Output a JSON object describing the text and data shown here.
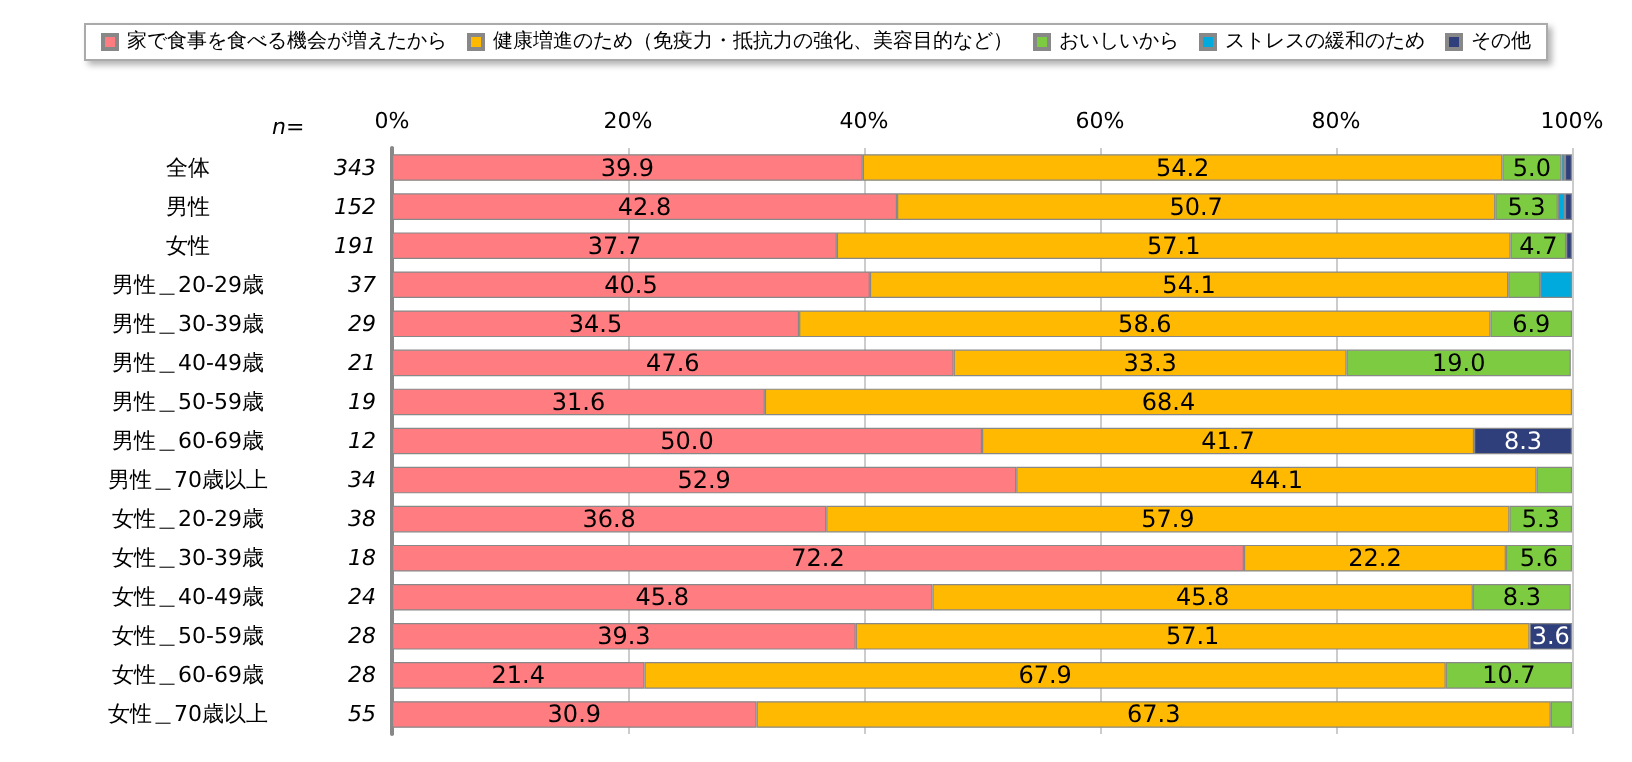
{
  "chart_data": {
    "type": "bar",
    "orientation": "horizontal",
    "stacked": true,
    "categories": [
      "全体",
      "男性",
      "女性",
      "男性＿20-29歳",
      "男性＿30-39歳",
      "男性＿40-49歳",
      "男性＿50-59歳",
      "男性＿60-69歳",
      "男性＿70歳以上",
      "女性＿20-29歳",
      "女性＿30-39歳",
      "女性＿40-49歳",
      "女性＿50-59歳",
      "女性＿60-69歳",
      "女性＿70歳以上"
    ],
    "series": [
      {
        "name": "家で食事を食べる機会が増えたから",
        "color": "#ff7c80",
        "values": [
          39.9,
          42.8,
          37.7,
          40.5,
          34.5,
          47.6,
          31.6,
          50.0,
          52.9,
          36.8,
          72.2,
          45.8,
          39.3,
          21.4,
          30.9
        ],
        "value_labels": [
          "39.9",
          "42.8",
          "37.7",
          "40.5",
          "34.5",
          "47.6",
          "31.6",
          "50.0",
          "52.9",
          "36.8",
          "72.2",
          "45.8",
          "39.3",
          "21.4",
          "30.9"
        ]
      },
      {
        "name": "健康増進のため（免疫力・抵抗力の強化、美容目的など）",
        "color": "#ffb900",
        "values": [
          54.2,
          50.7,
          57.1,
          54.1,
          58.6,
          33.3,
          68.4,
          41.7,
          44.1,
          57.9,
          22.2,
          45.8,
          57.1,
          67.9,
          67.3
        ],
        "value_labels": [
          "54.2",
          "50.7",
          "57.1",
          "54.1",
          "58.6",
          "33.3",
          "68.4",
          "41.7",
          "44.1",
          "57.9",
          "22.2",
          "45.8",
          "57.1",
          "67.9",
          "67.3"
        ]
      },
      {
        "name": "おいしいから",
        "color": "#7dcb41",
        "values": [
          5.0,
          5.3,
          4.7,
          2.7,
          6.9,
          19.0,
          null,
          null,
          3.0,
          5.3,
          5.6,
          8.3,
          null,
          10.7,
          1.8
        ],
        "value_labels": [
          "5.0",
          "5.3",
          "4.7",
          null,
          "6.9",
          "19.0",
          null,
          null,
          null,
          "5.3",
          "5.6",
          "8.3",
          null,
          "10.7",
          null
        ]
      },
      {
        "name": "ストレスの緩和のため",
        "color": "#00aadd",
        "values": [
          0.3,
          0.6,
          null,
          2.7,
          null,
          null,
          null,
          null,
          null,
          null,
          null,
          null,
          null,
          null,
          null
        ],
        "value_labels": [
          null,
          null,
          null,
          null,
          null,
          null,
          null,
          null,
          null,
          null,
          null,
          null,
          null,
          null,
          null
        ]
      },
      {
        "name": "その他",
        "color": "#2e3f7c",
        "values": [
          0.6,
          0.6,
          0.5,
          null,
          null,
          null,
          null,
          8.3,
          null,
          null,
          null,
          null,
          3.6,
          null,
          null
        ],
        "value_labels": [
          null,
          null,
          null,
          null,
          null,
          null,
          null,
          "8.3",
          null,
          null,
          null,
          null,
          "3.6",
          null,
          null
        ]
      }
    ],
    "xlim": [
      0,
      100
    ],
    "xticks": [
      {
        "value": 0,
        "label": "0%"
      },
      {
        "value": 20,
        "label": "20%"
      },
      {
        "value": 40,
        "label": "40%"
      },
      {
        "value": 60,
        "label": "60%"
      },
      {
        "value": 80,
        "label": "80%"
      },
      {
        "value": 100,
        "label": "100%"
      }
    ],
    "grid": "x",
    "legend": "top",
    "annotations": [
      "n=",
      "343",
      "152",
      "191",
      "37",
      "29",
      "21",
      "19",
      "12",
      "34",
      "38",
      "18",
      "24",
      "28",
      "28",
      "55"
    ]
  }
}
